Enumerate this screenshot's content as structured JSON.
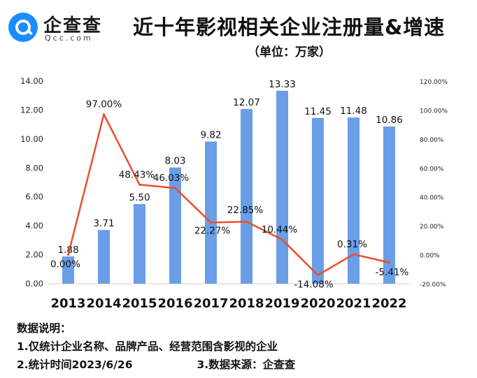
{
  "brand": {
    "name": "企查查",
    "domain": "Qcc.com",
    "color": "#1a8cff"
  },
  "header": {
    "title": "近十年影视相关企业注册量&增速",
    "subtitle": "（单位：万家）"
  },
  "chart_data": {
    "type": "bar+line",
    "categories": [
      "2013",
      "2014",
      "2015",
      "2016",
      "2017",
      "2018",
      "2019",
      "2020",
      "2021",
      "2022"
    ],
    "series": [
      {
        "name": "注册量（万家）",
        "type": "bar",
        "axis": "left",
        "color": "#6a9ee6",
        "values": [
          1.88,
          3.71,
          5.5,
          8.03,
          9.82,
          12.07,
          13.33,
          11.45,
          11.48,
          10.86
        ],
        "labels": [
          "1.88",
          "3.71",
          "5.50",
          "8.03",
          "9.82",
          "12.07",
          "13.33",
          "11.45",
          "11.48",
          "10.86"
        ]
      },
      {
        "name": "增速",
        "type": "line",
        "axis": "right",
        "color": "#e8502a",
        "values": [
          0.0,
          97.0,
          48.43,
          46.03,
          22.27,
          22.85,
          10.44,
          -14.08,
          0.31,
          -5.41
        ],
        "labels": [
          "0.00%",
          "97.00%",
          "48.43%",
          "46.03%",
          "22.27%",
          "22.85%",
          "10.44%",
          "-14.08%",
          "0.31%",
          "-5.41%"
        ]
      }
    ],
    "left_axis": {
      "ylim": [
        0,
        14
      ],
      "ticks": [
        "0.00",
        "2.00",
        "4.00",
        "6.00",
        "8.00",
        "10.00",
        "12.00",
        "14.00"
      ]
    },
    "right_axis": {
      "ylim": [
        -20,
        120
      ],
      "ticks": [
        "-20.00%",
        "0.00%",
        "20.00%",
        "40.00%",
        "60.00%",
        "80.00%",
        "100.00%",
        "120.00%"
      ]
    },
    "grid": false,
    "legend": "none"
  },
  "notes": {
    "heading": "数据说明：",
    "item1": "1.仅统计企业名称、品牌产品、经营范围含影视的企业",
    "item2": "2.统计时间2023/6/26",
    "item3": "3.数据来源：企查查"
  }
}
